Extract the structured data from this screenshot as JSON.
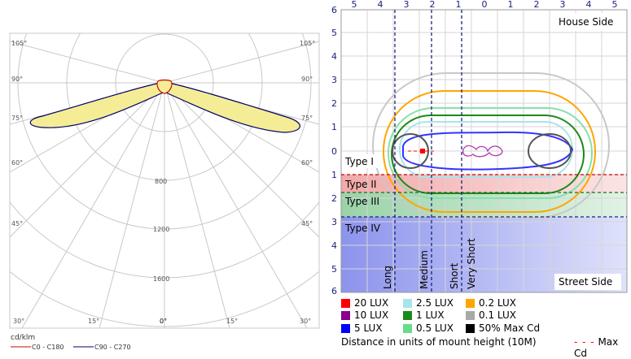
{
  "polar": {
    "unit_label": "cd/klm",
    "legend": [
      {
        "label": "C0 - C180",
        "color": "#cc0000"
      },
      {
        "label": "C90 - C270",
        "color": "#000066"
      }
    ],
    "angle_labels": {
      "left": [
        "105°",
        "90°",
        "75°",
        "60°",
        "45°",
        "30°",
        "15°"
      ],
      "right": [
        "105°",
        "90°",
        "75°",
        "60°",
        "45°",
        "30°",
        "15°"
      ],
      "bottom": "0°"
    },
    "radial_labels": [
      "800",
      "1200",
      "1600"
    ]
  },
  "chart_data": {
    "type": "isolux-contour",
    "x_ticks": [
      "5",
      "4",
      "3",
      "2",
      "1",
      "0",
      "1",
      "2",
      "3",
      "4",
      "5"
    ],
    "y_ticks_top": [
      "6",
      "5",
      "4",
      "3",
      "2",
      "1",
      "0"
    ],
    "y_ticks_bottom": [
      "1",
      "2",
      "3",
      "4",
      "5",
      "6"
    ],
    "house_side_label": "House Side",
    "street_side_label": "Street Side",
    "types": [
      "Type I",
      "Type II",
      "Type III",
      "Type IV"
    ],
    "lateral_classes": [
      "Long",
      "Medium",
      "Short",
      "Very Short"
    ],
    "legend": [
      {
        "label": "20 LUX",
        "color": "#ff0000"
      },
      {
        "label": "2.5 LUX",
        "color": "#a8e4ec"
      },
      {
        "label": "0.2 LUX",
        "color": "#ffa500"
      },
      {
        "label": "10 LUX",
        "color": "#8b008b"
      },
      {
        "label": "1 LUX",
        "color": "#1a8a1a"
      },
      {
        "label": "0.1 LUX",
        "color": "#a9a9a9"
      },
      {
        "label": "5 LUX",
        "color": "#0000ff"
      },
      {
        "label": "0.5 LUX",
        "color": "#66dd88"
      },
      {
        "label": "50% Max Cd",
        "color": "#000000"
      }
    ],
    "units_label": "Distance in units of mount height (10M)",
    "max_cd_label": "Max Cd"
  }
}
